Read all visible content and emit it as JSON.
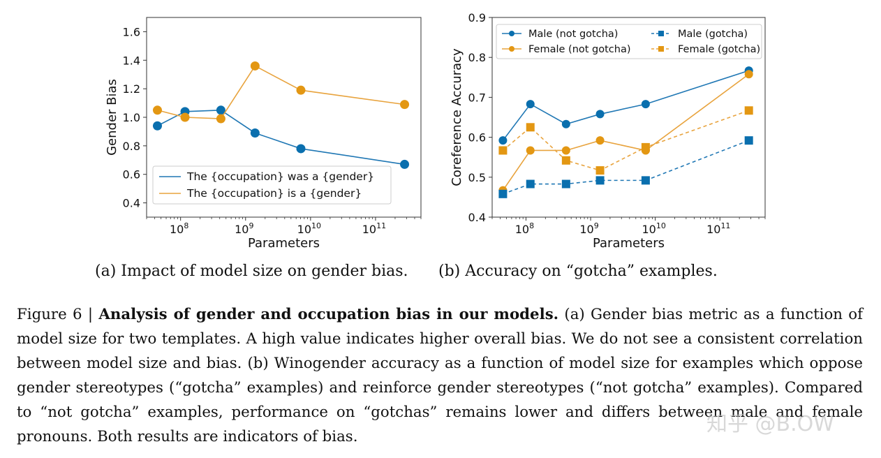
{
  "chart_data": [
    {
      "type": "line",
      "xlabel": "Parameters",
      "ylabel": "Gender Bias",
      "xscale": "log",
      "xlim": [
        30000000.0,
        500000000000.0
      ],
      "ylim": [
        0.3,
        1.7
      ],
      "x": [
        44000000.0,
        117000000.0,
        417000000.0,
        1400000000.0,
        7100000000.0,
        280000000000.0
      ],
      "yticks": [
        0.4,
        0.6,
        0.8,
        1.0,
        1.2,
        1.4,
        1.6
      ],
      "ytick_labels": [
        "0.4",
        "0.6",
        "0.8",
        "1.0",
        "1.2",
        "1.4",
        "1.6"
      ],
      "xtick_labels": [
        {
          "base": "10",
          "exp": "8"
        },
        {
          "base": "10",
          "exp": "9"
        },
        {
          "base": "10",
          "exp": "10"
        },
        {
          "base": "10",
          "exp": "11"
        }
      ],
      "xtick_values": [
        100000000.0,
        1000000000.0,
        10000000000.0,
        100000000000.0
      ],
      "legend_position": "lower-left",
      "series": [
        {
          "name": "The {occupation} was a {gender}",
          "color": "#1f77b4",
          "marker_color": "#0a6fae",
          "style": "solid",
          "marker": "circle",
          "values": [
            0.94,
            1.04,
            1.05,
            0.89,
            0.78,
            0.67
          ]
        },
        {
          "name": "The {occupation} is a {gender}",
          "color": "#e8a33d",
          "marker_color": "#e39713",
          "style": "solid",
          "marker": "circle",
          "values": [
            1.05,
            1.0,
            0.99,
            1.36,
            1.19,
            1.09
          ]
        }
      ]
    },
    {
      "type": "line",
      "xlabel": "Parameters",
      "ylabel": "Coreference Accuracy",
      "xscale": "log",
      "xlim": [
        30000000.0,
        500000000000.0
      ],
      "ylim": [
        0.4,
        0.9
      ],
      "x": [
        44000000.0,
        117000000.0,
        417000000.0,
        1400000000.0,
        7100000000.0,
        280000000000.0
      ],
      "yticks": [
        0.4,
        0.5,
        0.6,
        0.7,
        0.8,
        0.9
      ],
      "ytick_labels": [
        "0.4",
        "0.5",
        "0.6",
        "0.7",
        "0.8",
        "0.9"
      ],
      "xtick_labels": [
        {
          "base": "10",
          "exp": "8"
        },
        {
          "base": "10",
          "exp": "9"
        },
        {
          "base": "10",
          "exp": "10"
        },
        {
          "base": "10",
          "exp": "11"
        }
      ],
      "xtick_values": [
        100000000.0,
        1000000000.0,
        10000000000.0,
        100000000000.0
      ],
      "legend_position": "top-left",
      "series": [
        {
          "name": "Male (not gotcha)",
          "color": "#1f77b4",
          "marker_color": "#0a6fae",
          "style": "solid",
          "marker": "circle",
          "values": [
            0.592,
            0.683,
            0.633,
            0.658,
            0.683,
            0.767
          ]
        },
        {
          "name": "Female (not gotcha)",
          "color": "#e8a33d",
          "marker_color": "#e39713",
          "style": "solid",
          "marker": "circle",
          "values": [
            0.467,
            0.567,
            0.567,
            0.592,
            0.567,
            0.758
          ]
        },
        {
          "name": "Male (gotcha)",
          "color": "#1f77b4",
          "marker_color": "#0a6fae",
          "style": "dashed",
          "marker": "square",
          "values": [
            0.458,
            0.483,
            0.483,
            0.492,
            0.492,
            0.592
          ]
        },
        {
          "name": "Female (gotcha)",
          "color": "#e8a33d",
          "marker_color": "#e39713",
          "style": "dashed",
          "marker": "square",
          "values": [
            0.567,
            0.625,
            0.542,
            0.517,
            0.575,
            0.667
          ]
        }
      ]
    }
  ],
  "captions": {
    "a": "(a) Impact of model size on gender bias.",
    "b": "(b) Accuracy on “gotcha” examples."
  },
  "figure_caption": {
    "label": "Figure 6 | ",
    "title": "Analysis of gender and occupation bias in our models.",
    "body": " (a) Gender bias metric as a function of model size for two templates. A high value indicates higher overall bias. We do not see a consistent correlation between model size and bias. (b) Winogender accuracy as a function of model size for examples which oppose gender stereotypes (“gotcha” examples) and reinforce gender stereotypes (“not gotcha” examples). Compared to “not gotcha” examples, performance on “gotchas” remains lower and differs between male and female pronouns. Both results are indicators of bias."
  },
  "watermark": "知乎 @B.OW"
}
